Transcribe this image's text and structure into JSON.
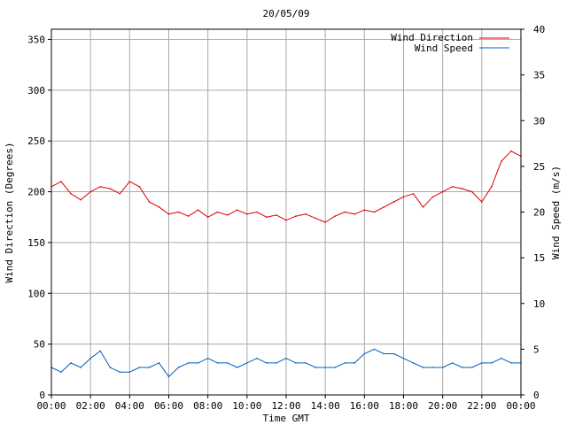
{
  "chart_data": {
    "type": "line",
    "title": "20/05/09",
    "xlabel": "Time GMT",
    "ylabel_left": "Wind Direction (Degrees)",
    "ylabel_right": "Wind Speed (m/s)",
    "x_ticks": [
      "00:00",
      "02:00",
      "04:00",
      "06:00",
      "08:00",
      "10:00",
      "12:00",
      "14:00",
      "16:00",
      "18:00",
      "20:00",
      "22:00",
      "00:00"
    ],
    "y_left_ticks": [
      "0",
      "50",
      "100",
      "150",
      "200",
      "250",
      "300",
      "350"
    ],
    "y_right_ticks": [
      "0",
      "5",
      "10",
      "15",
      "20",
      "25",
      "30",
      "35",
      "40"
    ],
    "x_range_hours": [
      0,
      24
    ],
    "ylim_left": [
      0,
      360
    ],
    "ylim_right": [
      0,
      40
    ],
    "grid": true,
    "legend_position": "top-right",
    "series": [
      {
        "name": "Wind Direction",
        "axis": "left",
        "color": "#dd0000",
        "x": [
          0,
          0.5,
          1,
          1.5,
          2,
          2.5,
          3,
          3.5,
          4,
          4.5,
          5,
          5.5,
          6,
          6.5,
          7,
          7.5,
          8,
          8.5,
          9,
          9.5,
          10,
          10.5,
          11,
          11.5,
          12,
          12.5,
          13,
          13.5,
          14,
          14.5,
          15,
          15.5,
          16,
          16.5,
          17,
          17.5,
          18,
          18.5,
          19,
          19.5,
          20,
          20.5,
          21,
          21.5,
          22,
          22.5,
          23,
          23.5,
          24
        ],
        "values": [
          205,
          210,
          198,
          192,
          200,
          205,
          203,
          198,
          210,
          205,
          190,
          185,
          178,
          180,
          176,
          182,
          175,
          180,
          177,
          182,
          178,
          180,
          175,
          177,
          172,
          176,
          178,
          174,
          170,
          176,
          180,
          178,
          182,
          180,
          185,
          190,
          195,
          198,
          185,
          195,
          200,
          205,
          203,
          200,
          190,
          205,
          230,
          240,
          235
        ]
      },
      {
        "name": "Wind Speed",
        "axis": "right",
        "color": "#0060c0",
        "x": [
          0,
          0.5,
          1,
          1.5,
          2,
          2.5,
          3,
          3.5,
          4,
          4.5,
          5,
          5.5,
          6,
          6.5,
          7,
          7.5,
          8,
          8.5,
          9,
          9.5,
          10,
          10.5,
          11,
          11.5,
          12,
          12.5,
          13,
          13.5,
          14,
          14.5,
          15,
          15.5,
          16,
          16.5,
          17,
          17.5,
          18,
          18.5,
          19,
          19.5,
          20,
          20.5,
          21,
          21.5,
          22,
          22.5,
          23,
          23.5,
          24
        ],
        "values": [
          3.0,
          2.5,
          3.5,
          3.0,
          4.0,
          4.8,
          3.0,
          2.5,
          2.5,
          3.0,
          3.0,
          3.5,
          2.0,
          3.0,
          3.5,
          3.5,
          4.0,
          3.5,
          3.5,
          3.0,
          3.5,
          4.0,
          3.5,
          3.5,
          4.0,
          3.5,
          3.5,
          3.0,
          3.0,
          3.0,
          3.5,
          3.5,
          4.5,
          5.0,
          4.5,
          4.5,
          4.0,
          3.5,
          3.0,
          3.0,
          3.0,
          3.5,
          3.0,
          3.0,
          3.5,
          3.5,
          4.0,
          3.5,
          3.5
        ]
      }
    ]
  }
}
